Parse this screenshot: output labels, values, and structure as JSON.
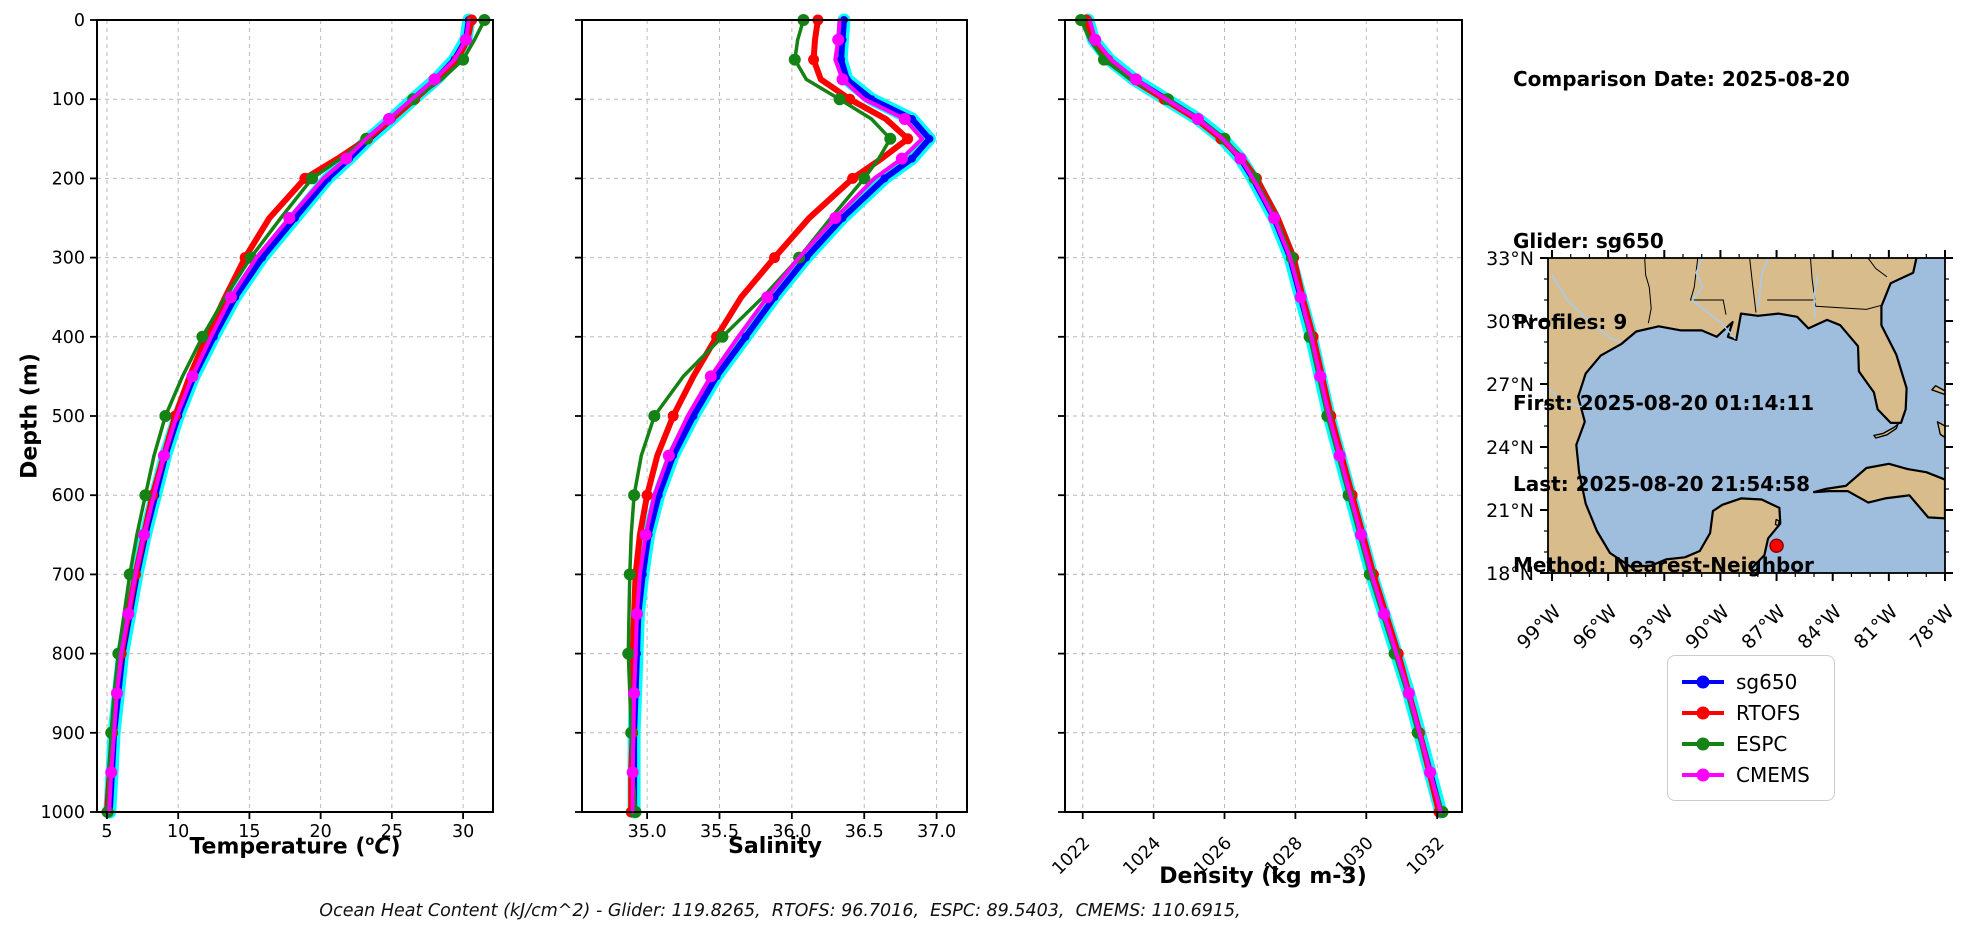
{
  "info": {
    "comparison": "Comparison Date: 2025-08-20",
    "glider": "Glider: sg650",
    "profiles": "Profiles: 9",
    "first": "First: 2025-08-20 01:14:11",
    "last": "Last: 2025-08-20 21:54:58",
    "method": "Method: Nearest-Neighbor"
  },
  "footer": {
    "text": "Ocean Heat Content (kJ/cm^2) - Glider: 119.8265,  RTOFS: 96.7016,  ESPC: 89.5403,  CMEMS: 110.6915,"
  },
  "legend": {
    "items": [
      {
        "label": "sg650",
        "color": "#0000ff"
      },
      {
        "label": "RTOFS",
        "color": "#ff0000"
      },
      {
        "label": "ESPC",
        "color": "#148214"
      },
      {
        "label": "CMEMS",
        "color": "#ff00ff"
      }
    ]
  },
  "map": {
    "lat_values": [
      33,
      30,
      27,
      24,
      21,
      18
    ],
    "lat_labels": [
      "33°N",
      "30°N",
      "27°N",
      "24°N",
      "21°N",
      "18°N"
    ],
    "lon_values": [
      99,
      96,
      93,
      90,
      87,
      84,
      81,
      78
    ],
    "lon_labels": [
      "99°W",
      "96°W",
      "93°W",
      "90°W",
      "87°W",
      "84°W",
      "81°W",
      "78°W"
    ],
    "marker": {
      "lon_w": 87.0,
      "lat_n": 19.3,
      "color": "#ff0000",
      "edge": "#8b0000"
    },
    "colors": {
      "land": "#d8bc8c",
      "water": "#9fbedd",
      "river": "#a9cbea"
    }
  },
  "chart_data": {
    "type": "line",
    "title": "",
    "ylabel": "Depth (m)",
    "ylim": [
      0,
      1000
    ],
    "grid": true,
    "depth_m": [
      0,
      25,
      50,
      75,
      100,
      125,
      150,
      175,
      200,
      250,
      300,
      350,
      400,
      450,
      500,
      550,
      600,
      650,
      700,
      750,
      800,
      850,
      900,
      950,
      1000
    ],
    "depth_tick_values": [
      0,
      100,
      200,
      300,
      400,
      500,
      600,
      700,
      800,
      900,
      1000
    ],
    "depth_tick_labels": [
      "0",
      "100",
      "200",
      "300",
      "400",
      "500",
      "600",
      "700",
      "800",
      "900",
      "1000"
    ],
    "panels": [
      {
        "key": "temperature",
        "title_pre": "Temperature (",
        "title_sup": "o",
        "title_italic": "C",
        "title_post": ")",
        "xlim": [
          4.3,
          32.1
        ],
        "xtick_values": [
          5,
          10,
          15,
          20,
          25,
          30
        ],
        "xtick_labels": [
          "5",
          "10",
          "15",
          "20",
          "25",
          "30"
        ],
        "rotated_ticks": false
      },
      {
        "key": "salinity",
        "title": "Salinity",
        "xlim": [
          34.55,
          37.21
        ],
        "xtick_values": [
          35.0,
          35.5,
          36.0,
          36.5,
          37.0
        ],
        "xtick_labels": [
          "35.0",
          "35.5",
          "36.0",
          "36.5",
          "37.0"
        ],
        "rotated_ticks": false
      },
      {
        "key": "density",
        "title": "Density (kg m-3)",
        "xlim": [
          1021.5,
          1032.7
        ],
        "xtick_values": [
          1022,
          1024,
          1026,
          1028,
          1030,
          1032
        ],
        "xtick_labels": [
          "1022",
          "1024",
          "1026",
          "1028",
          "1030",
          "1032"
        ],
        "rotated_ticks": true
      }
    ],
    "series": [
      {
        "name": "sg650",
        "color": "#0000ff",
        "band_color": "#00ffff",
        "temperature": [
          30.4,
          30.2,
          29.4,
          28.1,
          26.5,
          25.0,
          23.4,
          22.0,
          20.5,
          18.2,
          15.9,
          14.0,
          12.5,
          11.1,
          10.0,
          9.1,
          8.4,
          7.7,
          7.1,
          6.6,
          6.1,
          5.8,
          5.5,
          5.35,
          5.2
        ],
        "salinity": [
          36.36,
          36.35,
          36.34,
          36.38,
          36.55,
          36.83,
          36.95,
          36.83,
          36.64,
          36.35,
          36.1,
          35.88,
          35.68,
          35.48,
          35.32,
          35.18,
          35.08,
          35.01,
          34.97,
          34.94,
          34.93,
          34.92,
          34.91,
          34.91,
          34.91
        ],
        "density": [
          1022.15,
          1022.3,
          1022.75,
          1023.45,
          1024.35,
          1025.25,
          1025.95,
          1026.45,
          1026.8,
          1027.4,
          1027.85,
          1028.15,
          1028.45,
          1028.7,
          1028.95,
          1029.25,
          1029.55,
          1029.85,
          1030.15,
          1030.5,
          1030.85,
          1031.2,
          1031.5,
          1031.8,
          1032.1
        ]
      },
      {
        "name": "RTOFS",
        "color": "#ff0000",
        "temperature": [
          30.6,
          30.3,
          29.6,
          28.2,
          26.6,
          25.0,
          23.3,
          21.2,
          18.9,
          16.4,
          14.7,
          13.3,
          12.0,
          10.8,
          9.8,
          9.0,
          8.2,
          7.6,
          7.0,
          6.5,
          6.0,
          5.6,
          5.4,
          5.2,
          5.0
        ],
        "salinity": [
          36.18,
          36.16,
          36.15,
          36.2,
          36.4,
          36.65,
          36.8,
          36.62,
          36.42,
          36.12,
          35.88,
          35.65,
          35.48,
          35.32,
          35.18,
          35.07,
          35.0,
          34.95,
          34.92,
          34.91,
          34.9,
          34.9,
          34.9,
          34.89,
          34.89
        ],
        "density": [
          1022.1,
          1022.25,
          1022.7,
          1023.4,
          1024.3,
          1025.2,
          1025.9,
          1026.5,
          1026.9,
          1027.5,
          1027.95,
          1028.2,
          1028.5,
          1028.75,
          1029.0,
          1029.3,
          1029.6,
          1029.9,
          1030.2,
          1030.55,
          1030.9,
          1031.2,
          1031.5,
          1031.78,
          1032.05
        ]
      },
      {
        "name": "ESPC",
        "color": "#148214",
        "temperature": [
          31.5,
          30.8,
          30.0,
          28.5,
          26.5,
          24.9,
          23.2,
          21.4,
          19.4,
          17.2,
          15.1,
          13.3,
          11.7,
          10.3,
          9.1,
          8.3,
          7.7,
          7.1,
          6.6,
          6.2,
          5.8,
          5.5,
          5.3,
          5.15,
          5.05
        ],
        "salinity": [
          36.08,
          36.04,
          36.02,
          36.1,
          36.33,
          36.55,
          36.68,
          36.6,
          36.5,
          36.27,
          36.05,
          35.8,
          35.52,
          35.25,
          35.05,
          34.96,
          34.91,
          34.89,
          34.88,
          34.875,
          34.87,
          34.88,
          34.89,
          34.9,
          34.92
        ],
        "density": [
          1021.95,
          1022.2,
          1022.6,
          1023.35,
          1024.4,
          1025.3,
          1026.0,
          1026.5,
          1026.85,
          1027.45,
          1027.9,
          1028.15,
          1028.4,
          1028.65,
          1028.9,
          1029.2,
          1029.5,
          1029.8,
          1030.1,
          1030.45,
          1030.8,
          1031.15,
          1031.45,
          1031.8,
          1032.15
        ]
      },
      {
        "name": "CMEMS",
        "color": "#ff00ff",
        "temperature": [
          30.4,
          30.2,
          29.4,
          28.0,
          26.4,
          24.8,
          23.2,
          21.8,
          20.2,
          17.8,
          15.5,
          13.7,
          12.3,
          11.0,
          9.9,
          9.0,
          8.3,
          7.6,
          7.0,
          6.5,
          6.0,
          5.7,
          5.5,
          5.3,
          5.15
        ],
        "salinity": [
          36.33,
          36.32,
          36.3,
          36.35,
          36.5,
          36.78,
          36.9,
          36.76,
          36.57,
          36.3,
          36.05,
          35.83,
          35.63,
          35.44,
          35.28,
          35.15,
          35.05,
          34.99,
          34.95,
          34.93,
          34.92,
          34.91,
          34.905,
          34.9,
          34.9
        ],
        "density": [
          1022.2,
          1022.35,
          1022.8,
          1023.5,
          1024.35,
          1025.25,
          1025.95,
          1026.45,
          1026.8,
          1027.4,
          1027.85,
          1028.15,
          1028.45,
          1028.7,
          1028.95,
          1029.25,
          1029.55,
          1029.85,
          1030.15,
          1030.5,
          1030.85,
          1031.2,
          1031.5,
          1031.8,
          1032.1
        ]
      }
    ]
  }
}
